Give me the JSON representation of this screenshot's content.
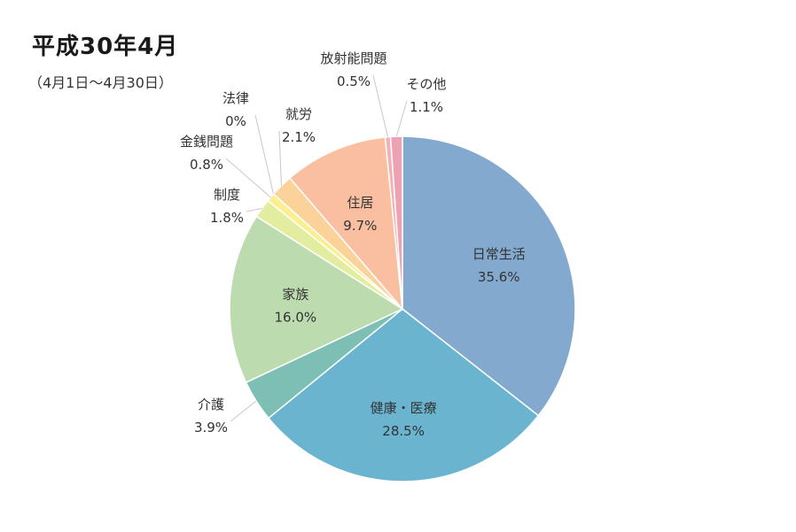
{
  "chart": {
    "title": "平成30年4月",
    "subtitle": "（4月1日〜4月30日）"
  },
  "chart_data": {
    "type": "pie",
    "title": "平成30年4月",
    "subtitle": "（4月1日〜4月30日）",
    "slices": [
      {
        "name": "日常生活",
        "value": 35.6,
        "label": "35.6%",
        "color": "#84a9cf",
        "placement": "inside"
      },
      {
        "name": "健康・医療",
        "value": 28.5,
        "label": "28.5%",
        "color": "#6ab4d0",
        "placement": "inside"
      },
      {
        "name": "介護",
        "value": 3.9,
        "label": "3.9%",
        "color": "#7dbfb4",
        "placement": "outside"
      },
      {
        "name": "家族",
        "value": 16.0,
        "label": "16.0%",
        "color": "#bcdbae",
        "placement": "inside"
      },
      {
        "name": "制度",
        "value": 1.8,
        "label": "1.8%",
        "color": "#e3eda0",
        "placement": "outside"
      },
      {
        "name": "金銭問題",
        "value": 0.8,
        "label": "0.8%",
        "color": "#fbef8f",
        "placement": "outside"
      },
      {
        "name": "法律",
        "value": 0,
        "label": "0%",
        "color": "#f8e38a",
        "placement": "outside"
      },
      {
        "name": "就労",
        "value": 2.1,
        "label": "2.1%",
        "color": "#fad29a",
        "placement": "outside"
      },
      {
        "name": "住居",
        "value": 9.7,
        "label": "9.7%",
        "color": "#f9bfa0",
        "placement": "inside"
      },
      {
        "name": "放射能問題",
        "value": 0.5,
        "label": "0.5%",
        "color": "#f4b0b2",
        "placement": "outside"
      },
      {
        "name": "その他",
        "value": 1.1,
        "label": "1.1%",
        "color": "#eca2b2",
        "placement": "outside"
      }
    ]
  }
}
